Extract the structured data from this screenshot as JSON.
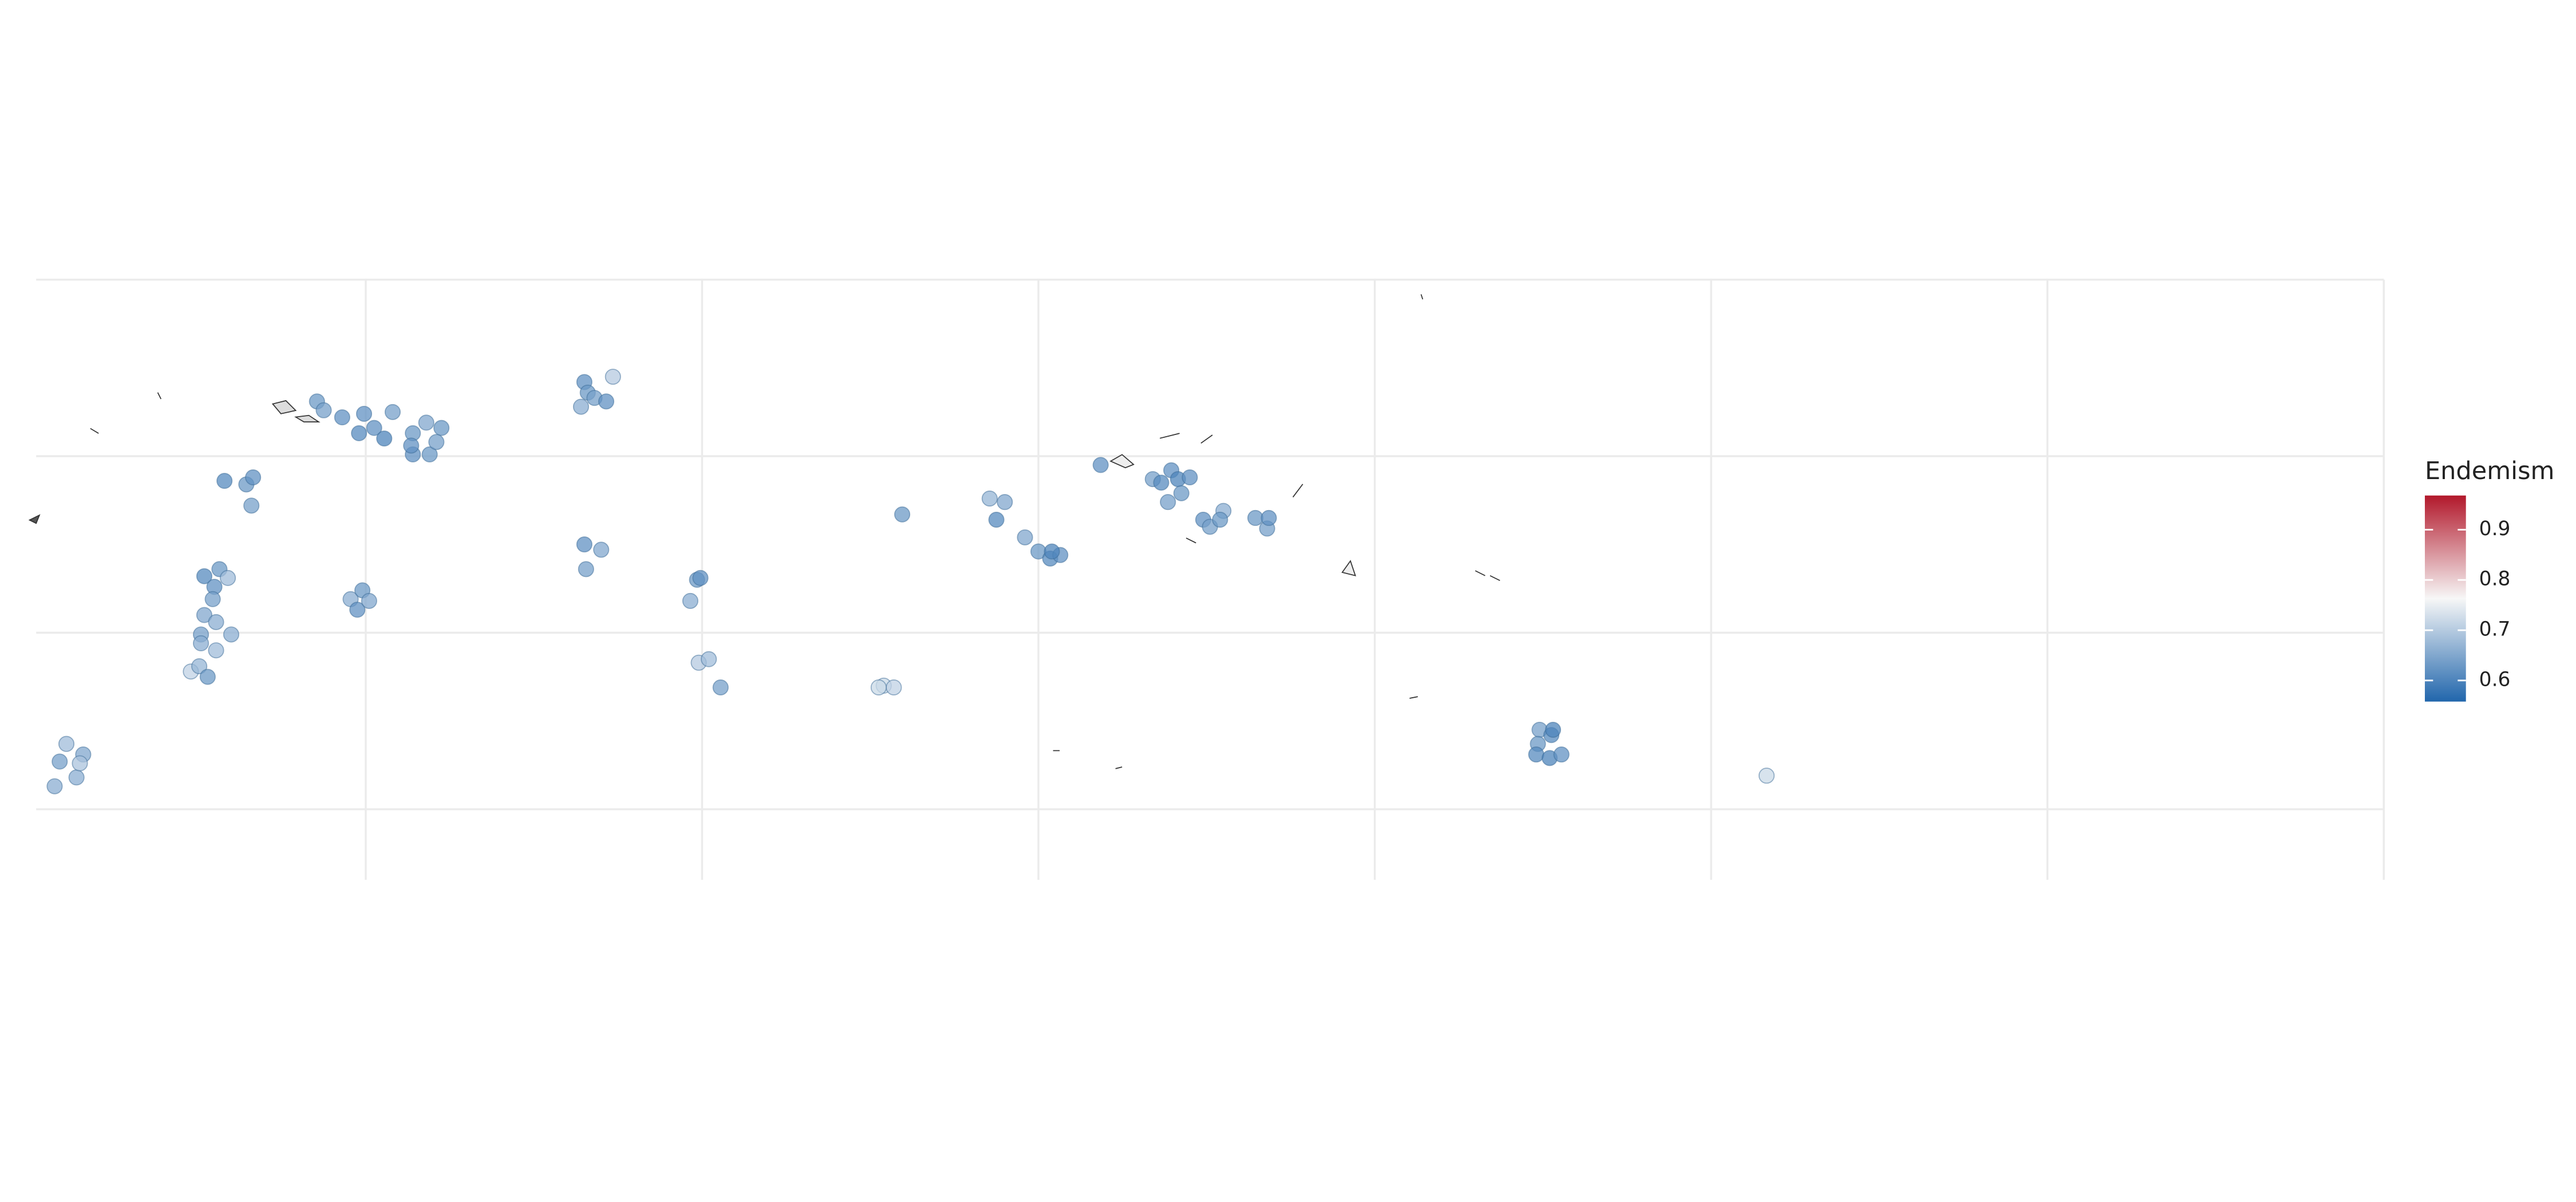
{
  "chart_data": {
    "type": "scatter",
    "legend_title": "Endemism",
    "lon": [
      157.1,
      157.5,
      158.6,
      159.9,
      161.6,
      159.6,
      160.5,
      161.1,
      162.8,
      163.6,
      164.5,
      162.8,
      163.8,
      164.2,
      162.7,
      151.6,
      152.9,
      153.3,
      153.2,
      173.0,
      173.2,
      172.8,
      173.6,
      174.3,
      174.7,
      173.0,
      174.0,
      173.1,
      150.4,
      151.3,
      151.8,
      151.0,
      150.9,
      150.4,
      151.1,
      150.2,
      150.2,
      152.0,
      151.1,
      149.6,
      150.1,
      150.6,
      159.1,
      159.8,
      159.5,
      160.2,
      179.7,
      179.9,
      179.3,
      179.8,
      180.4,
      181.1,
      190.8,
      191.4,
      190.5,
      191.9,
      197.1,
      198.0,
      197.5,
      199.2,
      200.0,
      200.7,
      201.3,
      200.8,
      203.7,
      206.8,
      207.9,
      207.3,
      208.3,
      209.0,
      207.7,
      208.5,
      209.8,
      210.2,
      211.0,
      210.8,
      212.9,
      213.6,
      213.7,
      229.8,
      230.5,
      229.7,
      230.6,
      229.6,
      230.4,
      231.1,
      243.3,
      141.5,
      141.8,
      142.2,
      143.2,
      142.8,
      143.0
    ],
    "lat": [
      13.1,
      12.6,
      12.2,
      12.4,
      12.5,
      11.3,
      11.6,
      11.0,
      11.3,
      11.9,
      11.6,
      10.1,
      10.1,
      10.8,
      10.6,
      8.6,
      8.4,
      8.8,
      7.2,
      14.2,
      13.6,
      12.8,
      13.3,
      13.1,
      14.5,
      5.0,
      4.7,
      3.6,
      3.2,
      3.6,
      3.1,
      2.6,
      1.9,
      1.0,
      0.6,
      -0.1,
      -0.6,
      -0.1,
      -1.0,
      -2.2,
      -1.9,
      -2.5,
      1.9,
      2.4,
      1.3,
      1.8,
      3.0,
      3.1,
      1.8,
      -1.7,
      -1.5,
      -3.1,
      -3.0,
      -3.1,
      -3.1,
      6.7,
      7.6,
      7.4,
      6.4,
      5.4,
      4.6,
      4.2,
      4.4,
      4.6,
      9.5,
      8.7,
      9.2,
      8.5,
      8.7,
      8.8,
      7.4,
      7.9,
      6.4,
      6.0,
      6.9,
      6.4,
      6.5,
      5.9,
      6.5,
      -5.5,
      -5.8,
      -6.3,
      -5.5,
      -6.9,
      -7.1,
      -6.9,
      -8.1,
      -8.7,
      -7.3,
      -6.3,
      -6.9,
      -8.2,
      -7.4
    ],
    "values": [
      0.63,
      0.64,
      0.62,
      0.62,
      0.64,
      0.61,
      0.62,
      0.6,
      0.63,
      0.65,
      0.63,
      0.62,
      0.63,
      0.64,
      0.62,
      0.61,
      0.63,
      0.62,
      0.64,
      0.62,
      0.63,
      0.66,
      0.64,
      0.62,
      0.7,
      0.62,
      0.65,
      0.64,
      0.61,
      0.63,
      0.68,
      0.62,
      0.64,
      0.65,
      0.66,
      0.64,
      0.66,
      0.66,
      0.68,
      0.71,
      0.67,
      0.63,
      0.66,
      0.63,
      0.62,
      0.65,
      0.63,
      0.62,
      0.66,
      0.7,
      0.68,
      0.64,
      0.72,
      0.71,
      0.72,
      0.63,
      0.67,
      0.65,
      0.61,
      0.65,
      0.63,
      0.61,
      0.62,
      0.6,
      0.62,
      0.64,
      0.62,
      0.61,
      0.6,
      0.62,
      0.64,
      0.63,
      0.62,
      0.64,
      0.66,
      0.63,
      0.63,
      0.64,
      0.62,
      0.64,
      0.61,
      0.63,
      0.6,
      0.61,
      0.6,
      0.62,
      0.72,
      0.66,
      0.64,
      0.68,
      0.65,
      0.66,
      0.69
    ],
    "xlim": [
      140.4,
      280
    ],
    "ylim": [
      -14,
      20
    ],
    "xticks": [
      160,
      180,
      200,
      220,
      240,
      260,
      280
    ],
    "yticks": [
      -10,
      0,
      10,
      20
    ],
    "grid": true,
    "color_limits": [
      0.558,
      0.968
    ],
    "color_ticks": [
      0.6,
      0.7,
      0.8,
      0.9
    ],
    "color_stops": [
      "#2166ac",
      "#f7f7f7",
      "#b2182b"
    ]
  }
}
